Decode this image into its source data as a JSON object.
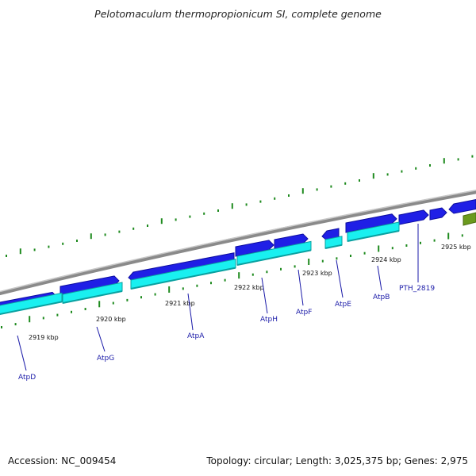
{
  "title": "Pelotomaculum thermopropionicum SI, complete genome",
  "footer": {
    "accession": "Accession: NC_009454",
    "summary": "Topology: circular; Length: 3,025,375 bp; Genes: 2,975"
  },
  "colors": {
    "backbone": "#8a8a8a",
    "gene": "#1f1fe6",
    "gene_dark": "#0d0da0",
    "cds": "#19f0f0",
    "cds_dark": "#0aa0a0",
    "tick": "#1e8a1e",
    "other_feature": "#6b9a1e",
    "label": "#1a1aa8"
  },
  "kbp_labels": [
    "2919 kbp",
    "2920 kbp",
    "2921 kbp",
    "2922 kbp",
    "2923 kbp",
    "2924 kbp",
    "2925 kbp"
  ],
  "gene_labels": [
    "AtpD",
    "AtpG",
    "AtpA",
    "AtpH",
    "AtpF",
    "AtpE",
    "AtpB",
    "PTH_2819"
  ]
}
